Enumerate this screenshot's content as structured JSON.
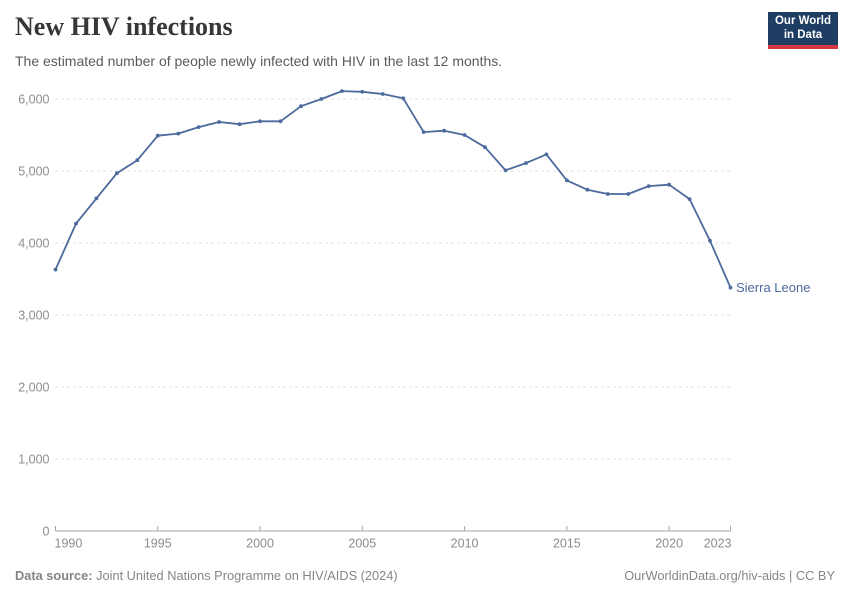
{
  "header": {
    "title": "New HIV infections",
    "subtitle": "The estimated number of people newly infected with HIV in the last 12 months."
  },
  "logo": {
    "line1": "Our World",
    "line2": "in Data",
    "bg_color": "#1d3d63",
    "accent_color": "#d7383f"
  },
  "chart_data": {
    "type": "line",
    "title": "New HIV infections",
    "entity_label": "Sierra Leone",
    "x": [
      1990,
      1991,
      1992,
      1993,
      1994,
      1995,
      1996,
      1997,
      1998,
      1999,
      2000,
      2001,
      2002,
      2003,
      2004,
      2005,
      2006,
      2007,
      2008,
      2009,
      2010,
      2011,
      2012,
      2013,
      2014,
      2015,
      2016,
      2017,
      2018,
      2019,
      2020,
      2021,
      2022,
      2023
    ],
    "series": [
      {
        "name": "Sierra Leone",
        "color": "#4c6a9c",
        "values": [
          3630,
          4270,
          4620,
          4970,
          5150,
          5490,
          5520,
          5610,
          5680,
          5650,
          5690,
          5690,
          5900,
          6000,
          6110,
          6100,
          6070,
          6010,
          5540,
          5560,
          5500,
          5330,
          5010,
          5110,
          5230,
          4870,
          4740,
          4680,
          4680,
          4790,
          4810,
          4610,
          4030,
          3380
        ]
      }
    ],
    "xlim": [
      1990,
      2023
    ],
    "ylim": [
      0,
      6200
    ],
    "xticks": [
      1990,
      1995,
      2000,
      2005,
      2010,
      2015,
      2020,
      2023
    ],
    "yticks": [
      0,
      1000,
      2000,
      3000,
      4000,
      5000,
      6000
    ],
    "ytick_labels": [
      "0",
      "1,000",
      "2,000",
      "3,000",
      "4,000",
      "5,000",
      "6,000"
    ],
    "grid": "horizontal-dashed",
    "legend_position": "end-of-line-label"
  },
  "footer": {
    "source_label": "Data source:",
    "source_text": "Joint United Nations Programme on HIV/AIDS (2024)",
    "link_text": "OurWorldinData.org/hiv-aids",
    "separator": "|",
    "license_text": "CC BY"
  },
  "colors": {
    "line": "#4c6a9c",
    "grid": "#dcdcdc",
    "axis": "#a6a6a6",
    "tick_label": "#8c8c8c",
    "title": "#373737",
    "subtitle": "#5b5b5b",
    "footer": "#868686"
  }
}
